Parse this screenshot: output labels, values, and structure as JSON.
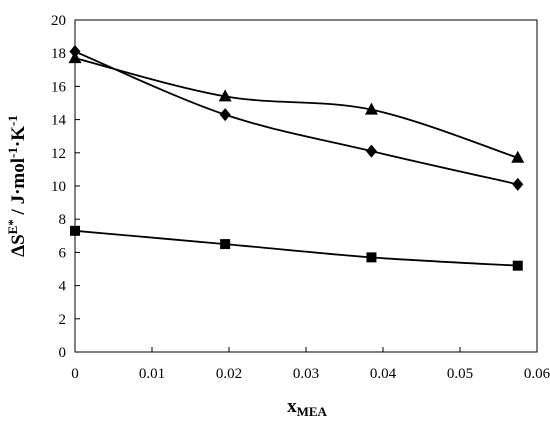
{
  "chart_data": {
    "type": "line",
    "xlabel_main": "x",
    "xlabel_sub": "MEA",
    "ylabel_parts": [
      "ΔS",
      "E*",
      " / J·mol",
      "-1",
      "·K",
      "-1"
    ],
    "xlim": [
      0,
      0.06
    ],
    "ylim": [
      0,
      20
    ],
    "xticks": [
      "0",
      "0.01",
      "0.02",
      "0.03",
      "0.04",
      "0.05",
      "0.06"
    ],
    "yticks": [
      "0",
      "2",
      "4",
      "6",
      "8",
      "10",
      "12",
      "14",
      "16",
      "18",
      "20"
    ],
    "grid": false,
    "series": [
      {
        "marker": "diamond",
        "x": [
          0,
          0.0195,
          0.0385,
          0.0575
        ],
        "values": [
          18.1,
          14.3,
          12.1,
          10.1
        ]
      },
      {
        "marker": "triangle",
        "x": [
          0,
          0.0195,
          0.0385,
          0.0575
        ],
        "values": [
          17.7,
          15.4,
          14.6,
          11.7
        ]
      },
      {
        "marker": "square",
        "x": [
          0,
          0.0195,
          0.0385,
          0.0575
        ],
        "values": [
          7.3,
          6.5,
          5.7,
          5.2
        ]
      }
    ],
    "colors": {
      "line": "#000000",
      "marker": "#000000"
    }
  }
}
